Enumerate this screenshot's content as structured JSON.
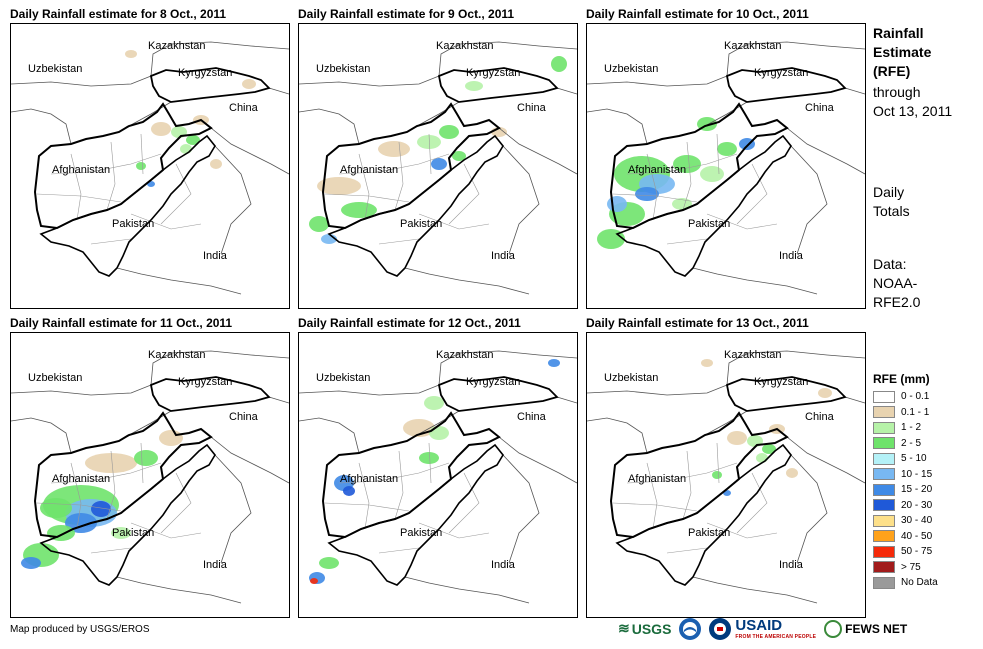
{
  "panels": [
    {
      "title": "Daily Rainfall estimate for 8 Oct., 2011",
      "date": "8 Oct., 2011",
      "pattern": "light-ne"
    },
    {
      "title": "Daily Rainfall estimate for 9 Oct., 2011",
      "date": "9 Oct., 2011",
      "pattern": "moderate-central"
    },
    {
      "title": "Daily Rainfall estimate for 10 Oct., 2011",
      "date": "10 Oct., 2011",
      "pattern": "heavy-west"
    },
    {
      "title": "Daily Rainfall estimate for 11 Oct., 2011",
      "date": "11 Oct., 2011",
      "pattern": "heavy-west-south"
    },
    {
      "title": "Daily Rainfall estimate for 12 Oct., 2011",
      "date": "12 Oct., 2011",
      "pattern": "moderate-west"
    },
    {
      "title": "Daily Rainfall estimate for 13 Oct., 2011",
      "date": "13 Oct., 2011",
      "pattern": "light-ne"
    }
  ],
  "map_labels": {
    "kazakhstan": "Kazakhstan",
    "uzbekistan": "Uzbekistan",
    "kyrgyzstan": "Kyrgyzstan",
    "china": "China",
    "afghanistan": "Afghanistan",
    "pakistan": "Pakistan",
    "india": "India"
  },
  "side_info": {
    "title_line1": "Rainfall",
    "title_line2": "Estimate",
    "title_line3": "(RFE)",
    "through": "through",
    "date": "Oct 13, 2011",
    "daily_line1": "Daily",
    "daily_line2": "Totals",
    "data_line1": "Data:",
    "data_line2": "NOAA-",
    "data_line3": "RFE2.0"
  },
  "legend": {
    "title": "RFE (mm)",
    "items": [
      {
        "label": "0 - 0.1",
        "color": "#ffffff"
      },
      {
        "label": "0.1 - 1",
        "color": "#e8d3b0"
      },
      {
        "label": "1 - 2",
        "color": "#b6f2a8"
      },
      {
        "label": "2 - 5",
        "color": "#6fe36b"
      },
      {
        "label": "5 - 10",
        "color": "#b4f1f7"
      },
      {
        "label": "10 - 15",
        "color": "#78b8f2"
      },
      {
        "label": "15 - 20",
        "color": "#3f8ae6"
      },
      {
        "label": "20 - 30",
        "color": "#1f59d8"
      },
      {
        "label": "30 - 40",
        "color": "#fde08a"
      },
      {
        "label": "40 - 50",
        "color": "#ffa21a"
      },
      {
        "label": "50 - 75",
        "color": "#f52a0a"
      },
      {
        "label": "> 75",
        "color": "#a11b1b"
      },
      {
        "label": "No Data",
        "color": "#9a9a9a"
      }
    ]
  },
  "credit": "Map produced by USGS/EROS",
  "logos": {
    "usgs": "USGS",
    "noaa": "NOAA",
    "usaid": "USAID",
    "usaid_sub": "FROM THE AMERICAN PEOPLE",
    "fews": "FEWS NET"
  }
}
